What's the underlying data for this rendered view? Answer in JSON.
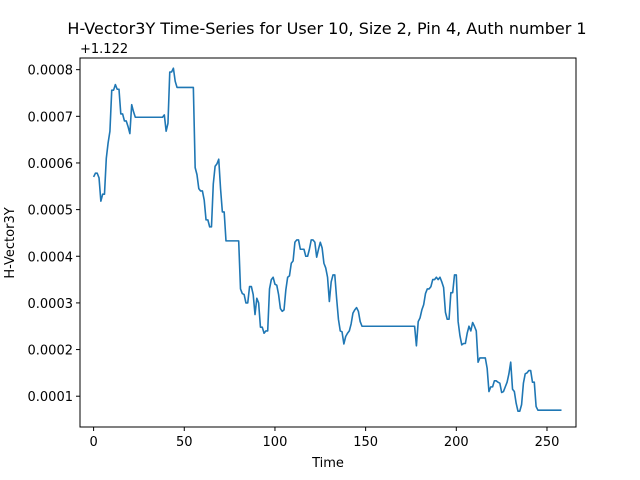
{
  "chart_data": {
    "type": "line",
    "title": "H-Vector3Y Time-Series for User 10, Size 2, Pin 4, Auth number 1",
    "xlabel": "Time",
    "ylabel": "H-Vector3Y",
    "offset_label": "+1.122",
    "xlim": [
      -7.5,
      266
    ],
    "ylim": [
      3.4e-05,
      0.000825
    ],
    "xticks": [
      0,
      50,
      100,
      150,
      200,
      250
    ],
    "yticks": [
      0.0001,
      0.0002,
      0.0003,
      0.0004,
      0.0005,
      0.0006,
      0.0007,
      0.0008
    ],
    "ytick_labels": [
      "0.0001",
      "0.0002",
      "0.0003",
      "0.0004",
      "0.0005",
      "0.0006",
      "0.0007",
      "0.0008"
    ],
    "grid": false,
    "legend": false,
    "color": "#1f77b4",
    "series": [
      {
        "points": [
          [
            0,
            0.00057
          ],
          [
            1,
            0.000578
          ],
          [
            2,
            0.000578
          ],
          [
            3,
            0.000568
          ],
          [
            4,
            0.000518
          ],
          [
            5,
            0.000533
          ],
          [
            6,
            0.000533
          ],
          [
            7,
            0.00061
          ],
          [
            8,
            0.000643
          ],
          [
            9,
            0.000668
          ],
          [
            10,
            0.000756
          ],
          [
            11,
            0.000756
          ],
          [
            12,
            0.000768
          ],
          [
            13,
            0.000758
          ],
          [
            14,
            0.000758
          ],
          [
            15,
            0.000705
          ],
          [
            16,
            0.000705
          ],
          [
            17,
            0.00069
          ],
          [
            18,
            0.00069
          ],
          [
            19,
            0.000678
          ],
          [
            20,
            0.000663
          ],
          [
            21,
            0.000725
          ],
          [
            22,
            0.00071
          ],
          [
            23,
            0.000698
          ],
          [
            24,
            0.000698
          ],
          [
            30,
            0.000698
          ],
          [
            38,
            0.000698
          ],
          [
            39,
            0.000703
          ],
          [
            40,
            0.000668
          ],
          [
            41,
            0.000685
          ],
          [
            42,
            0.000795
          ],
          [
            43,
            0.000795
          ],
          [
            44,
            0.000803
          ],
          [
            45,
            0.000775
          ],
          [
            46,
            0.000762
          ],
          [
            55,
            0.000762
          ],
          [
            56,
            0.00059
          ],
          [
            57,
            0.000575
          ],
          [
            58,
            0.000545
          ],
          [
            59,
            0.00054
          ],
          [
            60,
            0.00054
          ],
          [
            61,
            0.00052
          ],
          [
            62,
            0.000478
          ],
          [
            63,
            0.000478
          ],
          [
            64,
            0.000463
          ],
          [
            65,
            0.000463
          ],
          [
            66,
            0.000555
          ],
          [
            67,
            0.000593
          ],
          [
            68,
            0.000598
          ],
          [
            69,
            0.000608
          ],
          [
            70,
            0.000545
          ],
          [
            71,
            0.000495
          ],
          [
            72,
            0.000495
          ],
          [
            73,
            0.000433
          ],
          [
            80,
            0.000433
          ],
          [
            81,
            0.00033
          ],
          [
            82,
            0.00032
          ],
          [
            83,
            0.000318
          ],
          [
            84,
            0.0003
          ],
          [
            85,
            0.0003
          ],
          [
            86,
            0.000335
          ],
          [
            87,
            0.000335
          ],
          [
            88,
            0.000318
          ],
          [
            89,
            0.000275
          ],
          [
            90,
            0.00031
          ],
          [
            91,
            0.0003
          ],
          [
            92,
            0.000248
          ],
          [
            93,
            0.000248
          ],
          [
            94,
            0.000235
          ],
          [
            95,
            0.00024
          ],
          [
            96,
            0.00024
          ],
          [
            97,
            0.00033
          ],
          [
            98,
            0.00035
          ],
          [
            99,
            0.000355
          ],
          [
            100,
            0.00034
          ],
          [
            101,
            0.000338
          ],
          [
            102,
            0.000318
          ],
          [
            103,
            0.000288
          ],
          [
            104,
            0.000282
          ],
          [
            105,
            0.000285
          ],
          [
            106,
            0.000328
          ],
          [
            107,
            0.000355
          ],
          [
            108,
            0.000358
          ],
          [
            109,
            0.000385
          ],
          [
            110,
            0.00039
          ],
          [
            111,
            0.00043
          ],
          [
            112,
            0.000435
          ],
          [
            113,
            0.000435
          ],
          [
            114,
            0.000415
          ],
          [
            115,
            0.000415
          ],
          [
            116,
            0.000415
          ],
          [
            117,
            0.0004
          ],
          [
            118,
            0.0004
          ],
          [
            119,
            0.000415
          ],
          [
            120,
            0.000435
          ],
          [
            121,
            0.000435
          ],
          [
            122,
            0.00043
          ],
          [
            123,
            0.000398
          ],
          [
            124,
            0.000415
          ],
          [
            125,
            0.00043
          ],
          [
            126,
            0.000418
          ],
          [
            127,
            0.000385
          ],
          [
            128,
            0.000375
          ],
          [
            129,
            0.000355
          ],
          [
            130,
            0.000303
          ],
          [
            131,
            0.000345
          ],
          [
            132,
            0.00036
          ],
          [
            133,
            0.00036
          ],
          [
            134,
            0.00031
          ],
          [
            135,
            0.000265
          ],
          [
            136,
            0.00024
          ],
          [
            137,
            0.000238
          ],
          [
            138,
            0.000212
          ],
          [
            139,
            0.000228
          ],
          [
            140,
            0.000235
          ],
          [
            141,
            0.00024
          ],
          [
            142,
            0.000255
          ],
          [
            143,
            0.000278
          ],
          [
            144,
            0.000285
          ],
          [
            145,
            0.00029
          ],
          [
            146,
            0.000282
          ],
          [
            147,
            0.00026
          ],
          [
            148,
            0.00025
          ],
          [
            160,
            0.00025
          ],
          [
            170,
            0.00025
          ],
          [
            177,
            0.00025
          ],
          [
            178,
            0.000208
          ],
          [
            179,
            0.00026
          ],
          [
            180,
            0.000268
          ],
          [
            181,
            0.000285
          ],
          [
            182,
            0.000296
          ],
          [
            183,
            0.00032
          ],
          [
            184,
            0.00033
          ],
          [
            185,
            0.00033
          ],
          [
            186,
            0.000335
          ],
          [
            187,
            0.00035
          ],
          [
            188,
            0.00035
          ],
          [
            189,
            0.000355
          ],
          [
            190,
            0.00035
          ],
          [
            191,
            0.000355
          ],
          [
            192,
            0.000345
          ],
          [
            193,
            0.000333
          ],
          [
            194,
            0.00028
          ],
          [
            195,
            0.000265
          ],
          [
            196,
            0.000265
          ],
          [
            197,
            0.000322
          ],
          [
            198,
            0.000322
          ],
          [
            199,
            0.00036
          ],
          [
            200,
            0.00036
          ],
          [
            201,
            0.00026
          ],
          [
            202,
            0.00023
          ],
          [
            203,
            0.00021
          ],
          [
            204,
            0.000213
          ],
          [
            205,
            0.000213
          ],
          [
            206,
            0.000235
          ],
          [
            207,
            0.00025
          ],
          [
            208,
            0.00024
          ],
          [
            209,
            0.000258
          ],
          [
            210,
            0.00025
          ],
          [
            211,
            0.00024
          ],
          [
            212,
            0.000173
          ],
          [
            213,
            0.000182
          ],
          [
            214,
            0.000182
          ],
          [
            215,
            0.000182
          ],
          [
            216,
            0.000182
          ],
          [
            217,
            0.00016
          ],
          [
            218,
            0.00011
          ],
          [
            219,
            0.00012
          ],
          [
            220,
            0.00012
          ],
          [
            221,
            0.000133
          ],
          [
            222,
            0.000133
          ],
          [
            223,
            0.00013
          ],
          [
            224,
            0.000128
          ],
          [
            225,
            0.000108
          ],
          [
            226,
            0.00011
          ],
          [
            227,
            0.00012
          ],
          [
            228,
            0.00013
          ],
          [
            229,
            0.000148
          ],
          [
            230,
            0.000173
          ],
          [
            231,
            0.000115
          ],
          [
            232,
            0.00011
          ],
          [
            233,
            8.5e-05
          ],
          [
            234,
            6.8e-05
          ],
          [
            235,
            6.8e-05
          ],
          [
            236,
            8.2e-05
          ],
          [
            237,
            0.000128
          ],
          [
            238,
            0.000148
          ],
          [
            239,
            0.00015
          ],
          [
            240,
            0.000155
          ],
          [
            241,
            0.000155
          ],
          [
            242,
            0.00013
          ],
          [
            243,
            0.00013
          ],
          [
            244,
            7.8e-05
          ],
          [
            245,
            7e-05
          ],
          [
            246,
            7e-05
          ],
          [
            250,
            7e-05
          ],
          [
            258,
            7e-05
          ]
        ]
      }
    ]
  }
}
